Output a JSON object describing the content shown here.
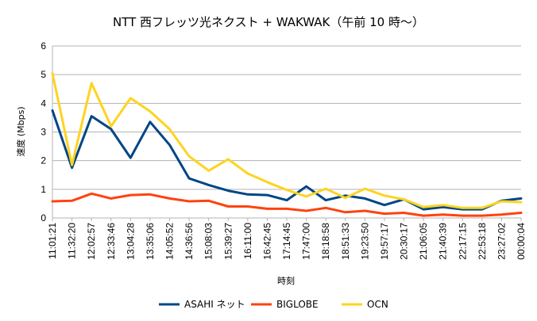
{
  "chart_data": {
    "type": "line",
    "title": "NTT 西フレッツ光ネクスト + WAKWAK（午前 10 時〜）",
    "xlabel": "時刻",
    "ylabel": "速度 (Mbps)",
    "ylim": [
      0,
      6
    ],
    "yticks": [
      "0",
      "1",
      "2",
      "3",
      "4",
      "5",
      "6"
    ],
    "grid": true,
    "legend": "bottom",
    "categories": [
      "11:01:21",
      "11:32:20",
      "12:02:57",
      "12:33:46",
      "13:04:28",
      "13:35:06",
      "14:05:52",
      "14:36:56",
      "15:08:03",
      "15:39:27",
      "16:11:00",
      "16:42:45",
      "17:14:45",
      "17:47:00",
      "18:18:58",
      "18:51:33",
      "19:23:50",
      "19:57:17",
      "20:30:17",
      "21:06:05",
      "21:40:39",
      "22:17:15",
      "22:53:18",
      "23:27:02",
      "00:00:04"
    ],
    "series": [
      {
        "name": "ASAHI ネット",
        "color": "#004586",
        "values": [
          3.75,
          1.75,
          3.55,
          3.1,
          2.1,
          3.35,
          2.55,
          1.38,
          1.15,
          0.95,
          0.82,
          0.8,
          0.62,
          1.1,
          0.62,
          0.78,
          0.68,
          0.45,
          0.65,
          0.3,
          0.38,
          0.3,
          0.3,
          0.6,
          0.68
        ]
      },
      {
        "name": "BIGLOBE",
        "color": "#ff420e",
        "values": [
          0.58,
          0.6,
          0.85,
          0.68,
          0.8,
          0.82,
          0.68,
          0.58,
          0.6,
          0.4,
          0.4,
          0.32,
          0.32,
          0.25,
          0.35,
          0.2,
          0.25,
          0.15,
          0.18,
          0.08,
          0.12,
          0.08,
          0.08,
          0.12,
          0.18
        ]
      },
      {
        "name": "OCN",
        "color": "#ffd320",
        "values": [
          5.05,
          1.85,
          4.7,
          3.2,
          4.18,
          3.72,
          3.1,
          2.15,
          1.65,
          2.05,
          1.55,
          1.25,
          0.98,
          0.75,
          1.02,
          0.7,
          1.02,
          0.78,
          0.65,
          0.38,
          0.45,
          0.35,
          0.35,
          0.58,
          0.55
        ]
      }
    ]
  }
}
